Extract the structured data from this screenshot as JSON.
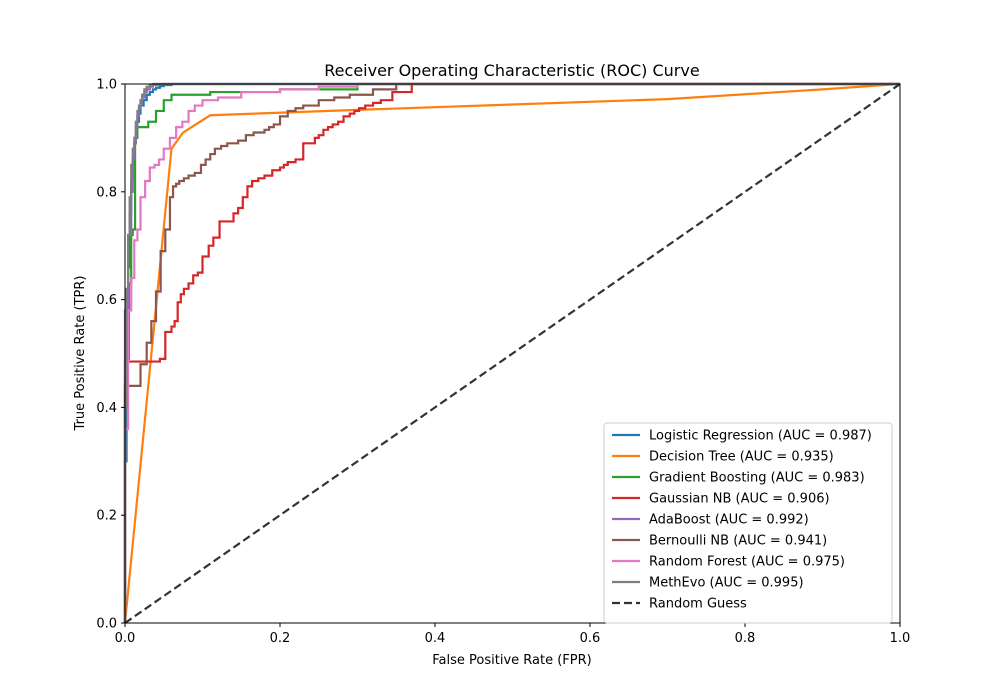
{
  "chart_data": {
    "type": "line",
    "title": "Receiver Operating Characteristic (ROC) Curve",
    "xlabel": "False Positive Rate (FPR)",
    "ylabel": "True Positive Rate (TPR)",
    "xlim": [
      0,
      1
    ],
    "ylim": [
      0,
      1
    ],
    "xticks": [
      "0.0",
      "0.2",
      "0.4",
      "0.6",
      "0.8",
      "1.0"
    ],
    "yticks": [
      "0.0",
      "0.2",
      "0.4",
      "0.6",
      "0.8",
      "1.0"
    ],
    "grid": false,
    "legend_position": "lower-right",
    "series": [
      {
        "name": "Logistic Regression (AUC = 0.987)",
        "color": "#1f77b4",
        "dash": "solid",
        "x": [
          0,
          0.002,
          0.004,
          0.006,
          0.008,
          0.01,
          0.012,
          0.014,
          0.016,
          0.018,
          0.02,
          0.024,
          0.028,
          0.032,
          0.036,
          0.04,
          0.045,
          0.05,
          0.06,
          0.07,
          1.0
        ],
        "y": [
          0,
          0.3,
          0.5,
          0.66,
          0.76,
          0.82,
          0.86,
          0.89,
          0.91,
          0.93,
          0.945,
          0.96,
          0.97,
          0.98,
          0.985,
          0.99,
          0.993,
          0.996,
          0.998,
          1.0,
          1.0
        ]
      },
      {
        "name": "Decision Tree (AUC = 0.935)",
        "color": "#ff7f0e",
        "dash": "solid",
        "x": [
          0,
          0.06,
          0.075,
          0.11,
          0.3,
          0.5,
          0.7,
          0.9,
          1.0
        ],
        "y": [
          0,
          0.88,
          0.91,
          0.942,
          0.952,
          0.962,
          0.972,
          0.99,
          1.0
        ],
        "steps": false
      },
      {
        "name": "Gradient Boosting (AUC = 0.983)",
        "color": "#2ca02c",
        "dash": "solid",
        "x": [
          0,
          0,
          0.002,
          0.005,
          0.008,
          0.01,
          0.013,
          0.016,
          0.02,
          0.03,
          0.04,
          0.05,
          0.06,
          0.07,
          0.11,
          0.2,
          0.3,
          1.0
        ],
        "y": [
          0,
          0.23,
          0.45,
          0.49,
          0.63,
          0.72,
          0.73,
          0.9,
          0.92,
          0.92,
          0.93,
          0.95,
          0.97,
          0.98,
          0.98,
          0.985,
          0.99,
          1.0
        ]
      },
      {
        "name": "Gaussian NB (AUC = 0.906)",
        "color": "#d62728",
        "dash": "solid",
        "x": [
          0,
          0.045,
          0.052,
          0.06,
          0.064,
          0.068,
          0.072,
          0.076,
          0.082,
          0.088,
          0.094,
          0.1,
          0.108,
          0.114,
          0.122,
          0.14,
          0.146,
          0.152,
          0.158,
          0.164,
          0.172,
          0.18,
          0.19,
          0.2,
          0.205,
          0.21,
          0.22,
          0.23,
          0.245,
          0.25,
          0.256,
          0.262,
          0.268,
          0.275,
          0.282,
          0.29,
          0.296,
          0.302,
          0.31,
          0.32,
          0.33,
          0.345,
          0.37,
          1.0
        ],
        "y": [
          0,
          0.485,
          0.49,
          0.54,
          0.55,
          0.56,
          0.595,
          0.61,
          0.62,
          0.63,
          0.645,
          0.65,
          0.68,
          0.7,
          0.715,
          0.745,
          0.76,
          0.77,
          0.79,
          0.81,
          0.82,
          0.825,
          0.83,
          0.84,
          0.845,
          0.85,
          0.855,
          0.86,
          0.89,
          0.9,
          0.905,
          0.915,
          0.92,
          0.925,
          0.93,
          0.94,
          0.945,
          0.95,
          0.955,
          0.96,
          0.965,
          0.97,
          0.985,
          1.0
        ]
      },
      {
        "name": "AdaBoost (AUC = 0.992)",
        "color": "#9467bd",
        "dash": "solid",
        "x": [
          0,
          0.004,
          0.008,
          0.01,
          0.012,
          0.014,
          0.016,
          0.018,
          0.02,
          0.022,
          0.025,
          0.028,
          0.032,
          0.036,
          0.042,
          0.05,
          1.0
        ],
        "y": [
          0,
          0.58,
          0.72,
          0.8,
          0.86,
          0.89,
          0.92,
          0.94,
          0.955,
          0.965,
          0.975,
          0.985,
          0.99,
          0.995,
          0.998,
          1.0,
          1.0
        ]
      },
      {
        "name": "Bernoulli NB (AUC = 0.941)",
        "color": "#8c564b",
        "dash": "solid",
        "x": [
          0,
          0.02,
          0.028,
          0.034,
          0.04,
          0.046,
          0.052,
          0.058,
          0.062,
          0.066,
          0.07,
          0.076,
          0.082,
          0.09,
          0.098,
          0.104,
          0.11,
          0.116,
          0.124,
          0.132,
          0.146,
          0.156,
          0.166,
          0.18,
          0.186,
          0.192,
          0.2,
          0.21,
          0.22,
          0.23,
          0.25,
          0.27,
          0.29,
          0.32,
          0.35,
          0.38,
          1.0
        ],
        "y": [
          0,
          0.44,
          0.48,
          0.52,
          0.56,
          0.615,
          0.69,
          0.73,
          0.79,
          0.81,
          0.815,
          0.82,
          0.825,
          0.83,
          0.835,
          0.85,
          0.86,
          0.87,
          0.88,
          0.885,
          0.89,
          0.895,
          0.905,
          0.91,
          0.915,
          0.92,
          0.925,
          0.94,
          0.95,
          0.955,
          0.96,
          0.97,
          0.975,
          0.98,
          0.99,
          1.0,
          1.0
        ]
      },
      {
        "name": "Random Forest (AUC = 0.975)",
        "color": "#e377c2",
        "dash": "solid",
        "x": [
          0,
          0.004,
          0.008,
          0.012,
          0.016,
          0.02,
          0.026,
          0.032,
          0.038,
          0.044,
          0.05,
          0.058,
          0.066,
          0.074,
          0.082,
          0.09,
          0.1,
          0.12,
          0.15,
          0.2,
          0.25,
          0.3,
          1.0
        ],
        "y": [
          0,
          0.36,
          0.58,
          0.64,
          0.71,
          0.73,
          0.79,
          0.82,
          0.845,
          0.85,
          0.86,
          0.88,
          0.9,
          0.92,
          0.93,
          0.95,
          0.96,
          0.97,
          0.975,
          0.985,
          0.99,
          0.995,
          1.0
        ]
      },
      {
        "name": "MethEvo (AUC = 0.995)",
        "color": "#7f7f7f",
        "dash": "solid",
        "x": [
          0,
          0.002,
          0.004,
          0.006,
          0.008,
          0.01,
          0.012,
          0.014,
          0.016,
          0.018,
          0.02,
          0.022,
          0.025,
          0.028,
          0.032,
          0.036,
          0.042,
          1.0
        ],
        "y": [
          0,
          0.4,
          0.62,
          0.72,
          0.79,
          0.85,
          0.88,
          0.9,
          0.93,
          0.95,
          0.96,
          0.97,
          0.98,
          0.99,
          0.995,
          0.998,
          1.0,
          1.0
        ]
      },
      {
        "name": "Random Guess",
        "color": "#333333",
        "dash": "dashed",
        "x": [
          0,
          1
        ],
        "y": [
          0,
          1
        ],
        "steps": false
      }
    ]
  }
}
